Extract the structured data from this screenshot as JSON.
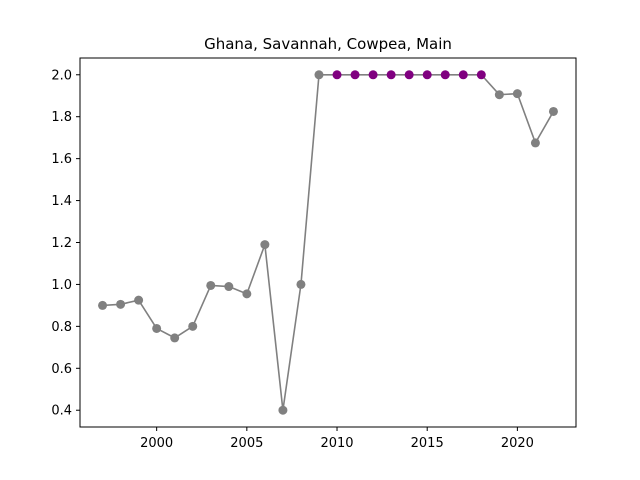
{
  "chart_data": {
    "type": "line",
    "title": "Ghana, Savannah, Cowpea, Main",
    "xlabel": "",
    "ylabel": "",
    "xlim": [
      1995.75,
      2023.25
    ],
    "ylim": [
      0.32,
      2.08
    ],
    "x_ticks": [
      2000,
      2005,
      2010,
      2015,
      2020
    ],
    "y_ticks": [
      0.4,
      0.6,
      0.8,
      1.0,
      1.2,
      1.4,
      1.6,
      1.8,
      2.0
    ],
    "x_tick_labels": [
      "2000",
      "2005",
      "2010",
      "2015",
      "2020"
    ],
    "y_tick_labels": [
      "0.4",
      "0.6",
      "0.8",
      "1.0",
      "1.2",
      "1.4",
      "1.6",
      "1.8",
      "2.0"
    ],
    "grid": false,
    "legend": "none",
    "line_color": "#808080",
    "series": [
      {
        "x": [
          1997,
          1998,
          1999,
          2000,
          2001,
          2002,
          2003,
          2004,
          2005,
          2006,
          2007,
          2008,
          2009,
          2010,
          2011,
          2012,
          2013,
          2014,
          2015,
          2016,
          2017,
          2018,
          2019,
          2020,
          2021,
          2022
        ],
        "values": [
          0.9,
          0.905,
          0.925,
          0.79,
          0.745,
          0.8,
          0.995,
          0.99,
          0.955,
          1.19,
          0.4,
          1.0,
          2.0,
          2.0,
          2.0,
          2.0,
          2.0,
          2.0,
          2.0,
          2.0,
          2.0,
          2.0,
          1.905,
          1.91,
          1.675,
          1.825
        ],
        "marker_colors": [
          "#808080",
          "#808080",
          "#808080",
          "#808080",
          "#808080",
          "#808080",
          "#808080",
          "#808080",
          "#808080",
          "#808080",
          "#808080",
          "#808080",
          "#808080",
          "#800080",
          "#800080",
          "#800080",
          "#800080",
          "#800080",
          "#800080",
          "#800080",
          "#800080",
          "#800080",
          "#808080",
          "#808080",
          "#808080",
          "#808080"
        ]
      }
    ]
  }
}
